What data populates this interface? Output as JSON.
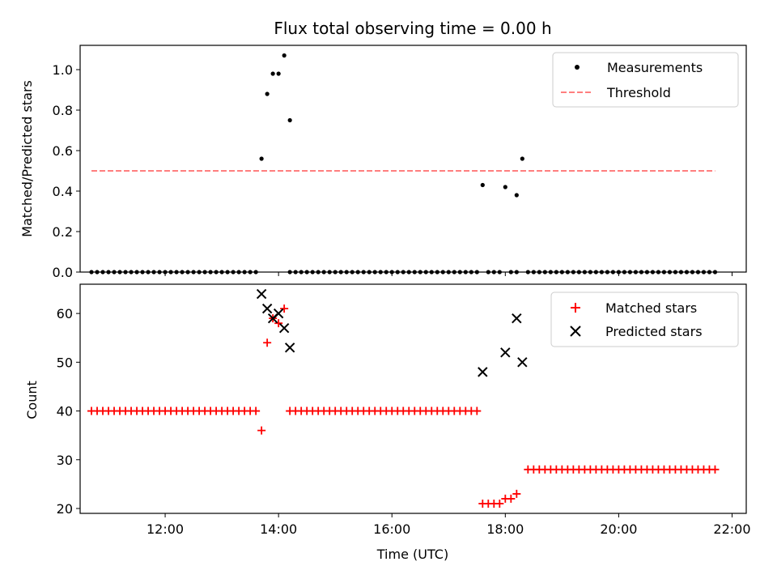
{
  "chart_data": [
    {
      "type": "scatter",
      "title": "Flux total observing time = 0.00 h",
      "ylabel": "Matched/Predicted stars",
      "xlim": [
        "10:30",
        "22:15"
      ],
      "ylim": [
        0,
        1.12
      ],
      "xticks": [
        "12:00",
        "14:00",
        "16:00",
        "18:00",
        "20:00",
        "22:00"
      ],
      "yticks": [
        "0.0",
        "0.2",
        "0.4",
        "0.6",
        "0.8",
        "1.0"
      ],
      "legend": {
        "position": "top-right",
        "entries": [
          "Measurements",
          "Threshold"
        ]
      },
      "series": [
        {
          "name": "Measurements",
          "marker": "dot",
          "color": "#000000",
          "zero_runs": [
            {
              "from": "10:42",
              "to": "13:36"
            },
            {
              "from": "14:12",
              "to": "17:30"
            },
            {
              "from": "17:42",
              "to": "17:54"
            },
            {
              "from": "18:06",
              "to": "18:12"
            },
            {
              "from": "18:24",
              "to": "21:42"
            }
          ],
          "points": [
            {
              "x": "13:42",
              "y": 0.56
            },
            {
              "x": "13:48",
              "y": 0.88
            },
            {
              "x": "13:54",
              "y": 0.98
            },
            {
              "x": "14:00",
              "y": 0.98
            },
            {
              "x": "14:06",
              "y": 1.07
            },
            {
              "x": "14:12",
              "y": 0.75
            },
            {
              "x": "17:36",
              "y": 0.43
            },
            {
              "x": "18:00",
              "y": 0.42
            },
            {
              "x": "18:12",
              "y": 0.38
            },
            {
              "x": "18:18",
              "y": 0.56
            }
          ]
        },
        {
          "name": "Threshold",
          "style": "dashed",
          "color": "#ff7f7f",
          "x": [
            "10:42",
            "21:42"
          ],
          "y": [
            0.5,
            0.5
          ]
        }
      ]
    },
    {
      "type": "scatter",
      "xlabel": "Time (UTC)",
      "ylabel": "Count",
      "xlim": [
        "10:30",
        "22:15"
      ],
      "ylim": [
        19,
        66
      ],
      "xticks": [
        "12:00",
        "14:00",
        "16:00",
        "18:00",
        "20:00",
        "22:00"
      ],
      "yticks": [
        "20",
        "30",
        "40",
        "50",
        "60"
      ],
      "legend": {
        "position": "top-right",
        "entries": [
          "Matched stars",
          "Predicted stars"
        ]
      },
      "series": [
        {
          "name": "Matched stars",
          "marker": "plus",
          "color": "#ff0000",
          "runs": [
            {
              "from": "10:42",
              "to": "13:36",
              "y": 40
            },
            {
              "from": "14:12",
              "to": "17:30",
              "y": 40
            },
            {
              "from": "18:24",
              "to": "21:42",
              "y": 28
            }
          ],
          "points": [
            {
              "x": "13:42",
              "y": 36
            },
            {
              "x": "13:48",
              "y": 54
            },
            {
              "x": "13:54",
              "y": 59
            },
            {
              "x": "14:00",
              "y": 58
            },
            {
              "x": "14:06",
              "y": 61
            },
            {
              "x": "17:36",
              "y": 21
            },
            {
              "x": "17:42",
              "y": 21
            },
            {
              "x": "17:48",
              "y": 21
            },
            {
              "x": "17:54",
              "y": 21
            },
            {
              "x": "18:00",
              "y": 22
            },
            {
              "x": "18:06",
              "y": 22
            },
            {
              "x": "18:12",
              "y": 23
            }
          ]
        },
        {
          "name": "Predicted stars",
          "marker": "x",
          "color": "#000000",
          "points": [
            {
              "x": "13:42",
              "y": 64
            },
            {
              "x": "13:48",
              "y": 61
            },
            {
              "x": "13:54",
              "y": 59
            },
            {
              "x": "14:00",
              "y": 60
            },
            {
              "x": "14:06",
              "y": 57
            },
            {
              "x": "14:12",
              "y": 53
            },
            {
              "x": "17:36",
              "y": 48
            },
            {
              "x": "18:00",
              "y": 52
            },
            {
              "x": "18:12",
              "y": 59
            },
            {
              "x": "18:18",
              "y": 50
            }
          ]
        }
      ]
    }
  ]
}
